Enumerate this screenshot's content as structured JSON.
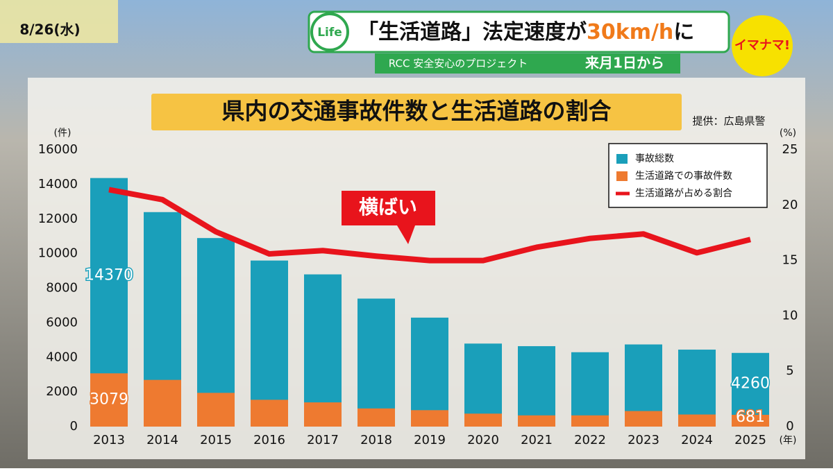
{
  "header": {
    "date": "8/26(水)",
    "badge": "Life",
    "headline_parts": [
      "「生活道路」法定速度が",
      "30km/h",
      "に"
    ],
    "project": "RCC 安全安心のプロジェクト",
    "start": "来月1日から",
    "logo": "イマナマ!"
  },
  "chart_data": {
    "type": "bar",
    "title": "県内の交通事故件数と生活道路の割合",
    "source": "提供：広島県警",
    "y_unit": "(件)",
    "y2_unit": "(%)",
    "x_unit": "(年)",
    "annotation": "横ばい",
    "categories": [
      "2013",
      "2014",
      "2015",
      "2016",
      "2017",
      "2018",
      "2019",
      "2020",
      "2021",
      "2022",
      "2023",
      "2024",
      "2025"
    ],
    "series": [
      {
        "name": "事故総数",
        "color": "#1a9fba",
        "values": [
          14370,
          12400,
          10900,
          9600,
          8800,
          7400,
          6300,
          4800,
          4650,
          4300,
          4750,
          4450,
          4260
        ],
        "value_labels": [
          "14370",
          null,
          null,
          null,
          null,
          null,
          null,
          null,
          null,
          null,
          null,
          null,
          "4260"
        ]
      },
      {
        "name": "生活道路での事故件数",
        "color": "#ee7a30",
        "values": [
          3079,
          2700,
          1950,
          1550,
          1400,
          1050,
          950,
          750,
          650,
          650,
          900,
          700,
          681
        ],
        "value_labels": [
          "3079",
          null,
          null,
          null,
          null,
          null,
          null,
          null,
          null,
          null,
          null,
          null,
          "681"
        ]
      },
      {
        "name": "生活道路が占める割合",
        "color": "#e8141c",
        "type": "line",
        "axis": "y2",
        "values": [
          21.4,
          20.5,
          17.6,
          15.6,
          15.9,
          15.4,
          15.0,
          15.0,
          16.2,
          17.0,
          17.4,
          15.7,
          16.9
        ]
      }
    ],
    "ylim": [
      0,
      16000
    ],
    "yticks": [
      0,
      2000,
      4000,
      6000,
      8000,
      10000,
      12000,
      14000,
      16000
    ],
    "y2lim": [
      0,
      25
    ],
    "y2ticks": [
      0,
      5,
      10,
      15,
      20,
      25
    ],
    "grid": false,
    "legend": "top-right"
  }
}
